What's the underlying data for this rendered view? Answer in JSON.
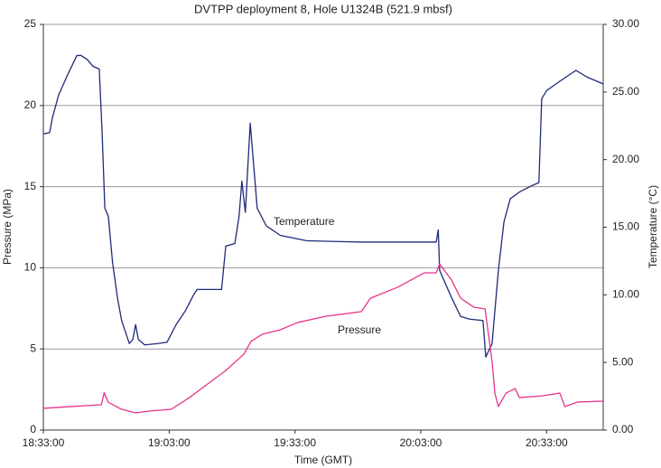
{
  "chart_data": {
    "type": "line",
    "title": "DVTPP deployment 8, Hole U1324B (521.9 mbsf)",
    "xlabel": "Time (GMT)",
    "ylabel": "Pressure (MPa)",
    "y2label": "Temperature (°C)",
    "xlim": [
      "18:33:00",
      "20:46:30"
    ],
    "xticks": [
      "18:33:00",
      "19:03:00",
      "19:33:00",
      "20:03:00",
      "20:33:00"
    ],
    "ylim": [
      0,
      25
    ],
    "yticks": [
      0,
      5,
      10,
      15,
      20,
      25
    ],
    "y2lim": [
      0,
      30
    ],
    "y2ticks": [
      {
        "value": 0,
        "label": "0.00"
      },
      {
        "value": 5,
        "label": "5.00"
      },
      {
        "value": 10,
        "label": "10.00"
      },
      {
        "value": 15,
        "label": "15.00"
      },
      {
        "value": 20,
        "label": "20.00"
      },
      {
        "value": 25,
        "label": "25.00"
      },
      {
        "value": 30,
        "label": "30.00"
      }
    ],
    "grid": true,
    "series": [
      {
        "name": "Temperature",
        "color": "#1f2a7a",
        "axis": "y2",
        "x": [
          "18:33:00",
          "18:34:30",
          "18:35:10",
          "18:36:40",
          "18:38:50",
          "18:41:00",
          "18:42:00",
          "18:43:30",
          "18:44:50",
          "18:46:20",
          "18:47:00",
          "18:47:40",
          "18:48:30",
          "18:49:30",
          "18:50:40",
          "18:51:40",
          "18:53:30",
          "18:54:20",
          "18:55:00",
          "18:55:40",
          "18:57:10",
          "19:00:20",
          "19:02:30",
          "19:04:40",
          "19:06:50",
          "19:09:00",
          "19:09:40",
          "19:15:30",
          "19:16:30",
          "19:18:40",
          "19:19:40",
          "19:20:20",
          "19:21:10",
          "19:22:20",
          "19:24:00",
          "19:26:10",
          "19:29:30",
          "19:35:50",
          "19:48:50",
          "20:06:40",
          "20:07:10",
          "20:07:30",
          "20:10:20",
          "20:12:30",
          "20:14:40",
          "20:17:50",
          "20:18:30",
          "20:20:00",
          "20:21:30",
          "20:22:50",
          "20:24:20",
          "20:26:30",
          "20:29:40",
          "20:31:10",
          "20:31:50",
          "20:33:00",
          "20:36:10",
          "20:40:00",
          "20:42:40",
          "20:46:30"
        ],
        "values": [
          21.9,
          22.0,
          23.1,
          24.8,
          26.3,
          27.7,
          27.7,
          27.4,
          26.9,
          26.7,
          22.1,
          16.4,
          15.8,
          12.4,
          9.8,
          8.1,
          6.4,
          6.7,
          7.8,
          6.7,
          6.3,
          6.4,
          6.5,
          7.8,
          8.8,
          10.1,
          10.4,
          10.4,
          13.6,
          13.8,
          15.8,
          18.4,
          16.1,
          22.7,
          16.4,
          15.1,
          14.4,
          14.0,
          13.9,
          13.9,
          14.8,
          11.8,
          9.8,
          8.4,
          8.2,
          8.1,
          5.4,
          6.4,
          11.8,
          15.4,
          17.1,
          17.6,
          18.1,
          18.3,
          24.5,
          25.1,
          25.8,
          26.6,
          26.1,
          25.6
        ]
      },
      {
        "name": "Pressure",
        "color": "#e8338c",
        "axis": "y",
        "x": [
          "18:33:00",
          "18:39:50",
          "18:46:50",
          "18:47:30",
          "18:48:30",
          "18:51:40",
          "18:55:00",
          "18:58:10",
          "19:03:30",
          "19:07:50",
          "19:12:10",
          "19:16:30",
          "19:20:50",
          "19:22:30",
          "19:25:10",
          "19:29:30",
          "19:33:40",
          "19:40:10",
          "19:48:50",
          "19:51:00",
          "19:57:30",
          "20:03:50",
          "20:06:40",
          "20:07:30",
          "20:10:20",
          "20:12:30",
          "20:15:40",
          "20:18:20",
          "20:20:00",
          "20:20:40",
          "20:21:30",
          "20:23:20",
          "20:25:30",
          "20:26:30",
          "20:31:50",
          "20:36:10",
          "20:37:20",
          "20:40:30",
          "20:46:30"
        ],
        "values": [
          1.34,
          1.45,
          1.56,
          2.3,
          1.7,
          1.28,
          1.06,
          1.17,
          1.28,
          2.0,
          2.84,
          3.67,
          4.68,
          5.46,
          5.9,
          6.18,
          6.63,
          7.0,
          7.3,
          8.13,
          8.8,
          9.69,
          9.69,
          10.24,
          9.24,
          8.13,
          7.57,
          7.46,
          4.23,
          2.28,
          1.45,
          2.28,
          2.56,
          2.0,
          2.1,
          2.28,
          1.45,
          1.73,
          1.78
        ]
      }
    ]
  }
}
